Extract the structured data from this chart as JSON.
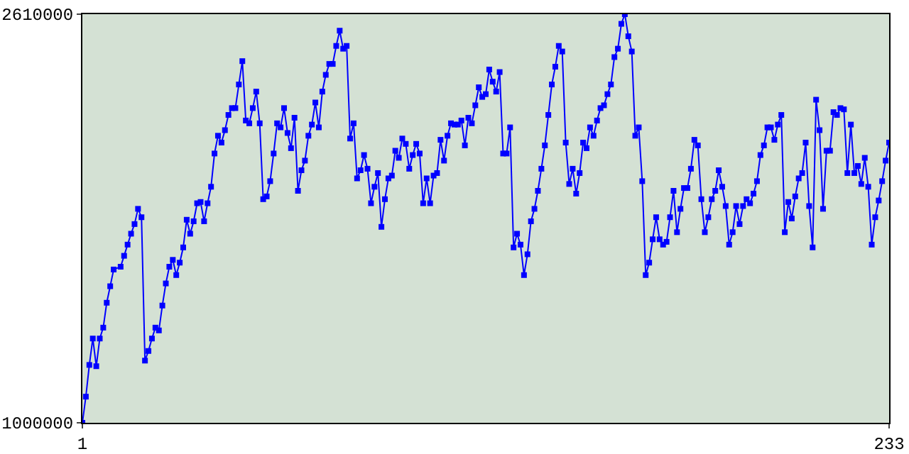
{
  "chart_data": {
    "type": "line",
    "marker": "square",
    "line_style": "solid",
    "legend": false,
    "xlim": [
      1,
      233
    ],
    "xticks": [
      1,
      233
    ],
    "ylim": [
      1000000,
      2610000
    ],
    "yticks": [
      1000000,
      2610000
    ],
    "x": [
      1,
      2,
      3,
      4,
      5,
      6,
      7,
      8,
      9,
      10,
      12,
      13,
      14,
      15,
      16,
      17,
      18,
      19,
      20,
      21,
      22,
      23,
      24,
      25,
      26,
      27,
      28,
      29,
      30,
      31,
      32,
      33,
      34,
      35,
      36,
      37,
      38,
      39,
      40,
      41,
      42,
      43,
      44,
      45,
      46,
      47,
      48,
      49,
      50,
      51,
      52,
      53,
      54,
      55,
      56,
      57,
      58,
      59,
      60,
      61,
      62,
      63,
      64,
      65,
      66,
      67,
      68,
      69,
      70,
      71,
      72,
      73,
      74,
      75,
      76,
      77,
      78,
      79,
      80,
      81,
      82,
      83,
      84,
      85,
      86,
      87,
      88,
      89,
      90,
      91,
      92,
      93,
      94,
      95,
      96,
      97,
      98,
      99,
      100,
      101,
      102,
      103,
      104,
      105,
      106,
      107,
      108,
      109,
      110,
      111,
      112,
      113,
      114,
      115,
      116,
      117,
      118,
      119,
      120,
      121,
      122,
      123,
      124,
      125,
      126,
      127,
      128,
      129,
      130,
      131,
      132,
      133,
      134,
      135,
      136,
      137,
      138,
      139,
      140,
      141,
      142,
      143,
      144,
      145,
      146,
      147,
      148,
      149,
      150,
      151,
      152,
      153,
      154,
      155,
      156,
      157,
      158,
      159,
      160,
      161,
      162,
      163,
      164,
      165,
      166,
      167,
      168,
      169,
      170,
      171,
      172,
      173,
      174,
      175,
      176,
      177,
      178,
      179,
      180,
      181,
      182,
      183,
      184,
      185,
      186,
      187,
      188,
      189,
      190,
      191,
      192,
      193,
      194,
      195,
      196,
      197,
      198,
      199,
      200,
      201,
      202,
      203,
      204,
      205,
      206,
      207,
      208,
      209,
      210,
      211,
      212,
      213,
      214,
      215,
      216,
      217,
      218,
      219,
      220,
      221,
      222,
      223,
      224,
      225,
      226,
      227,
      228,
      229,
      230,
      231,
      232,
      233
    ],
    "series": [
      {
        "color": "#0000ff",
        "values": [
          1000000,
          1103000,
          1228000,
          1332000,
          1223000,
          1332000,
          1375000,
          1473000,
          1538000,
          1604000,
          1615000,
          1658000,
          1702000,
          1745000,
          1783000,
          1843000,
          1810000,
          1245000,
          1283000,
          1332000,
          1375000,
          1364000,
          1462000,
          1549000,
          1615000,
          1642000,
          1582000,
          1631000,
          1691000,
          1800000,
          1745000,
          1794000,
          1865000,
          1870000,
          1794000,
          1865000,
          1930000,
          2061000,
          2131000,
          2104000,
          2153000,
          2213000,
          2240000,
          2240000,
          2333000,
          2425000,
          2191000,
          2180000,
          2240000,
          2305000,
          2180000,
          1881000,
          1892000,
          1952000,
          2061000,
          2180000,
          2164000,
          2240000,
          2142000,
          2082000,
          2202000,
          1914000,
          1995000,
          2033000,
          2131000,
          2175000,
          2262000,
          2164000,
          2305000,
          2371000,
          2414000,
          2414000,
          2485000,
          2545000,
          2474000,
          2485000,
          2120000,
          2180000,
          1963000,
          1995000,
          2055000,
          2001000,
          1865000,
          1930000,
          1984000,
          1772000,
          1881000,
          1963000,
          1974000,
          2072000,
          2044000,
          2120000,
          2099000,
          2001000,
          2055000,
          2099000,
          2061000,
          1865000,
          1963000,
          1865000,
          1974000,
          1984000,
          2115000,
          2033000,
          2131000,
          2180000,
          2175000,
          2175000,
          2191000,
          2093000,
          2202000,
          2180000,
          2251000,
          2322000,
          2284000,
          2295000,
          2392000,
          2344000,
          2305000,
          2382000,
          2061000,
          2061000,
          2164000,
          1691000,
          1745000,
          1702000,
          1582000,
          1664000,
          1794000,
          1843000,
          1914000,
          2001000,
          2093000,
          2213000,
          2333000,
          2403000,
          2485000,
          2463000,
          2104000,
          1941000,
          2001000,
          1903000,
          1984000,
          2104000,
          2082000,
          2164000,
          2131000,
          2191000,
          2240000,
          2251000,
          2295000,
          2333000,
          2441000,
          2474000,
          2572000,
          2610000,
          2523000,
          2463000,
          2131000,
          2164000,
          1952000,
          1582000,
          1631000,
          1723000,
          1810000,
          1723000,
          1702000,
          1713000,
          1810000,
          1914000,
          1751000,
          1843000,
          1925000,
          1925000,
          2001000,
          2115000,
          2093000,
          1881000,
          1751000,
          1810000,
          1881000,
          1914000,
          1995000,
          1930000,
          1854000,
          1702000,
          1751000,
          1854000,
          1783000,
          1854000,
          1881000,
          1865000,
          1903000,
          1952000,
          2055000,
          2093000,
          2164000,
          2164000,
          2115000,
          2175000,
          2213000,
          1751000,
          1870000,
          1805000,
          1892000,
          1963000,
          1984000,
          2104000,
          1854000,
          1691000,
          2273000,
          2153000,
          1843000,
          2072000,
          2072000,
          2224000,
          2213000,
          2240000,
          2235000,
          1984000,
          2175000,
          1984000,
          2012000,
          1941000,
          2044000,
          1930000,
          1702000,
          1810000,
          1876000,
          1952000,
          2033000,
          2104000
        ]
      }
    ]
  }
}
